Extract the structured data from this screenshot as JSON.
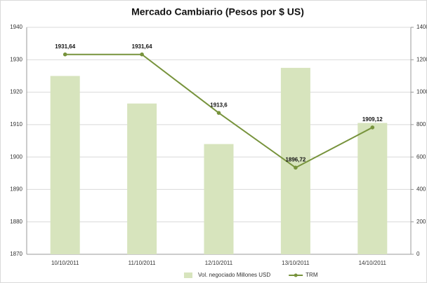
{
  "chart_data": {
    "type": "bar_line",
    "title": "Mercado Cambiario (Pesos por $ US)",
    "categories": [
      "10/10/2011",
      "11/10/2011",
      "12/10/2011",
      "13/10/2011",
      "14/10/2011"
    ],
    "series": [
      {
        "name": "Vol. negociado Millones USD",
        "type": "bar",
        "color": "#d7e4bd",
        "axis": "y2",
        "values": [
          1100,
          930,
          680,
          1150,
          810
        ]
      },
      {
        "name": "TRM",
        "type": "line",
        "color": "#77933c",
        "axis": "y",
        "values": [
          1931.64,
          1931.64,
          1913.6,
          1896.72,
          1909.12
        ],
        "value_labels": [
          "1931,64",
          "1931,64",
          "1913,6",
          "1896,72",
          "1909,12"
        ]
      }
    ],
    "ylim": [
      1870,
      1940
    ],
    "yticks": [
      1870,
      1880,
      1890,
      1900,
      1910,
      1920,
      1930,
      1940
    ],
    "y2lim": [
      0,
      1400
    ],
    "y2ticks": [
      0,
      200,
      400,
      600,
      800,
      1000,
      1200,
      1400
    ],
    "grid": true,
    "legend": "bottom"
  }
}
